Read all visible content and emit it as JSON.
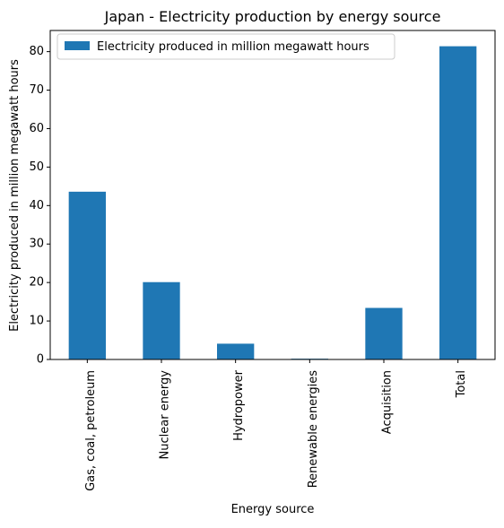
{
  "chart_data": {
    "type": "bar",
    "title": "Japan - Electricity production by energy source",
    "xlabel": "Energy source",
    "ylabel": "Electricity produced in million megawatt hours",
    "categories": [
      "Gas, coal, petroleum",
      "Nuclear energy",
      "Hydropower",
      "Renewable energies",
      "Acquisition",
      "Total"
    ],
    "series": [
      {
        "name": "Electricity produced in million megawatt hours",
        "values": [
          43.6,
          20.1,
          4.1,
          0.2,
          13.4,
          81.4
        ],
        "color": "#1f77b4"
      }
    ],
    "ylim": [
      0,
      85.5
    ],
    "yticks": [
      0,
      10,
      20,
      30,
      40,
      50,
      60,
      70,
      80
    ],
    "legend_position": "top-left",
    "grid": false
  }
}
